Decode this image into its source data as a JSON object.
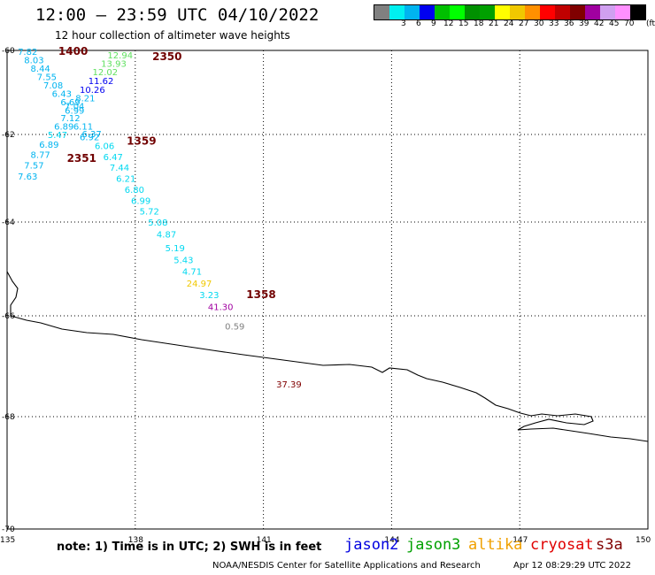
{
  "title": "12:00 – 23:59 UTC 04/10/2022",
  "subtitle": "12 hour collection of altimeter wave heights",
  "legend": {
    "unit": "(ft)",
    "swatches": [
      {
        "color": "#808080",
        "label": ""
      },
      {
        "color": "#00f0f0",
        "label": "3"
      },
      {
        "color": "#00b4f0",
        "label": "6"
      },
      {
        "color": "#0000f0",
        "label": "9"
      },
      {
        "color": "#00c000",
        "label": "12"
      },
      {
        "color": "#00ff00",
        "label": "15"
      },
      {
        "color": "#009000",
        "label": "18"
      },
      {
        "color": "#00a000",
        "label": "21"
      },
      {
        "color": "#ffff00",
        "label": "24"
      },
      {
        "color": "#f0c800",
        "label": "27"
      },
      {
        "color": "#ff9000",
        "label": "30"
      },
      {
        "color": "#ff0000",
        "label": "33"
      },
      {
        "color": "#c00000",
        "label": "36"
      },
      {
        "color": "#800000",
        "label": "39"
      },
      {
        "color": "#a000a0",
        "label": "42"
      },
      {
        "color": "#d0a0f0",
        "label": "45"
      },
      {
        "color": "#ff90ff",
        "label": "70"
      },
      {
        "color": "#000000",
        "label": ""
      }
    ]
  },
  "lat_labels": [
    "-60",
    "-62",
    "-64",
    "-66",
    "-68",
    "-70"
  ],
  "lon_labels": [
    "135",
    "138",
    "141",
    "144",
    "147",
    "150"
  ],
  "time_labels": [
    {
      "text": "1400",
      "lon": 136.2,
      "lat": -60.02
    },
    {
      "text": "2350",
      "lon": 138.4,
      "lat": -60.15
    },
    {
      "text": "1359",
      "lon": 137.8,
      "lat": -62.15
    },
    {
      "text": "2351",
      "lon": 136.4,
      "lat": -62.55
    },
    {
      "text": "1358",
      "lon": 140.6,
      "lat": -65.55
    }
  ],
  "wave_heights": [
    {
      "text": "7.82",
      "lon": 135.25,
      "lat": -60.02,
      "color": "#00b4f0"
    },
    {
      "text": "8.03",
      "lon": 135.4,
      "lat": -60.22,
      "color": "#00b4f0"
    },
    {
      "text": "8.44",
      "lon": 135.55,
      "lat": -60.42,
      "color": "#00b4f0"
    },
    {
      "text": "7.55",
      "lon": 135.7,
      "lat": -60.62,
      "color": "#00b4f0"
    },
    {
      "text": "7.08",
      "lon": 135.85,
      "lat": -60.82,
      "color": "#00b4f0"
    },
    {
      "text": "6.43",
      "lon": 136.05,
      "lat": -61.02,
      "color": "#00b4f0"
    },
    {
      "text": "6.69",
      "lon": 136.25,
      "lat": -61.22,
      "color": "#00b4f0"
    },
    {
      "text": "7.04",
      "lon": 136.35,
      "lat": -61.32,
      "color": "#00b4f0"
    },
    {
      "text": "6.99",
      "lon": 136.35,
      "lat": -61.42,
      "color": "#00b4f0"
    },
    {
      "text": "7.12",
      "lon": 136.25,
      "lat": -61.6,
      "color": "#00b4f0"
    },
    {
      "text": "6.89",
      "lon": 136.1,
      "lat": -61.8,
      "color": "#00b4f0"
    },
    {
      "text": "5.47",
      "lon": 135.95,
      "lat": -62.0,
      "color": "#00d8f0"
    },
    {
      "text": "6.89",
      "lon": 135.75,
      "lat": -62.22,
      "color": "#00b4f0"
    },
    {
      "text": "8.77",
      "lon": 135.55,
      "lat": -62.45,
      "color": "#00b4f0"
    },
    {
      "text": "7.57",
      "lon": 135.4,
      "lat": -62.7,
      "color": "#00b4f0"
    },
    {
      "text": "7.63",
      "lon": 135.25,
      "lat": -62.95,
      "color": "#00b4f0"
    },
    {
      "text": "12.94",
      "lon": 137.35,
      "lat": -60.1,
      "color": "#60e060"
    },
    {
      "text": "13.93",
      "lon": 137.2,
      "lat": -60.3,
      "color": "#60e060"
    },
    {
      "text": "12.02",
      "lon": 137.0,
      "lat": -60.5,
      "color": "#60e060"
    },
    {
      "text": "11.62",
      "lon": 136.9,
      "lat": -60.72,
      "color": "#0000f0"
    },
    {
      "text": "10.26",
      "lon": 136.7,
      "lat": -60.93,
      "color": "#0000f0"
    },
    {
      "text": "8.21",
      "lon": 136.6,
      "lat": -61.13,
      "color": "#00b4f0"
    },
    {
      "text": "6.11",
      "lon": 136.55,
      "lat": -61.8,
      "color": "#00b4f0"
    },
    {
      "text": "6.37",
      "lon": 136.75,
      "lat": -61.98,
      "color": "#00b4f0"
    },
    {
      "text": "6.92",
      "lon": 136.7,
      "lat": -62.05,
      "color": "#00b4f0"
    },
    {
      "text": "6.06",
      "lon": 137.05,
      "lat": -62.25,
      "color": "#00d8f0"
    },
    {
      "text": "6.47",
      "lon": 137.25,
      "lat": -62.5,
      "color": "#00d8f0"
    },
    {
      "text": "7.44",
      "lon": 137.4,
      "lat": -62.75,
      "color": "#00d8f0"
    },
    {
      "text": "6.21",
      "lon": 137.55,
      "lat": -63.0,
      "color": "#00d8f0"
    },
    {
      "text": "6.80",
      "lon": 137.75,
      "lat": -63.25,
      "color": "#00d8f0"
    },
    {
      "text": "6.99",
      "lon": 137.9,
      "lat": -63.5,
      "color": "#00d8f0"
    },
    {
      "text": "5.72",
      "lon": 138.1,
      "lat": -63.75,
      "color": "#00d8f0"
    },
    {
      "text": "5.08",
      "lon": 138.3,
      "lat": -64.0,
      "color": "#00d8f0"
    },
    {
      "text": "4.87",
      "lon": 138.5,
      "lat": -64.25,
      "color": "#00d8f0"
    },
    {
      "text": "5.19",
      "lon": 138.7,
      "lat": -64.55,
      "color": "#00d8f0"
    },
    {
      "text": "5.43",
      "lon": 138.9,
      "lat": -64.8,
      "color": "#00d8f0"
    },
    {
      "text": "4.71",
      "lon": 139.1,
      "lat": -65.05,
      "color": "#00d8f0"
    },
    {
      "text": "24.97",
      "lon": 139.2,
      "lat": -65.3,
      "color": "#f0c800"
    },
    {
      "text": "3.23",
      "lon": 139.5,
      "lat": -65.55,
      "color": "#00d8f0"
    },
    {
      "text": "41.30",
      "lon": 139.7,
      "lat": -65.8,
      "color": "#a000a0"
    },
    {
      "text": "0.59",
      "lon": 140.1,
      "lat": -66.2,
      "color": "#808080"
    },
    {
      "text": "37.39",
      "lon": 141.3,
      "lat": -67.35,
      "color": "#800000"
    }
  ],
  "note": "note: 1) Time is in UTC; 2) SWH is in feet",
  "satellites": [
    {
      "name": "jason2",
      "color": "#0000e0"
    },
    {
      "name": "jason3",
      "color": "#00a000"
    },
    {
      "name": "altika",
      "color": "#f0a000"
    },
    {
      "name": "cryosat",
      "color": "#e00000"
    },
    {
      "name": "s3a",
      "color": "#800000"
    }
  ],
  "credit": "NOAA/NESDIS Center for Satellite Applications and Research",
  "timestamp": "Apr 12 08:29:29 UTC 2022"
}
